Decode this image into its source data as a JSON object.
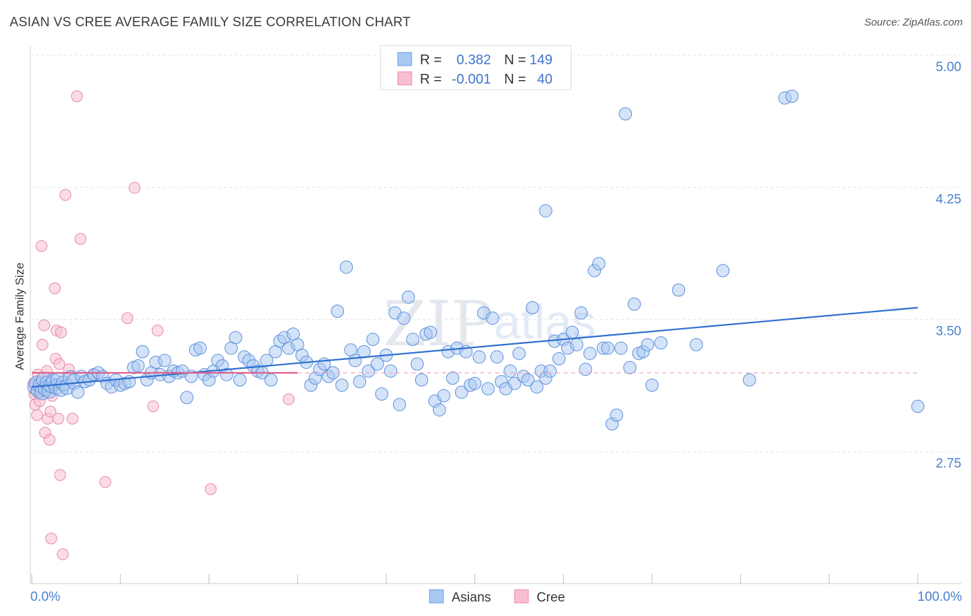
{
  "title": "ASIAN VS CREE AVERAGE FAMILY SIZE CORRELATION CHART",
  "source": "Source: ZipAtlas.com",
  "watermark": {
    "part1": "ZIP",
    "part2": "atlas"
  },
  "chart_data": {
    "type": "scatter",
    "title": "ASIAN VS CREE AVERAGE FAMILY SIZE CORRELATION CHART",
    "ylabel": "Average Family Size",
    "xlabel": "",
    "xlim": [
      0,
      100
    ],
    "ylim": [
      2.25,
      5.1
    ],
    "x_tick_labels": {
      "left": "0.0%",
      "right": "100.0%"
    },
    "y_ticks": [
      {
        "value": 2.75,
        "label": "2.75"
      },
      {
        "value": 3.5,
        "label": "3.50"
      },
      {
        "value": 4.25,
        "label": "4.25"
      },
      {
        "value": 5.0,
        "label": "5.00"
      }
    ],
    "legend_stats": [
      {
        "r_label": "R =",
        "r_value": "0.382",
        "n_label": "N =",
        "n_value": "149",
        "color": "#a9c8f2",
        "stroke": "#6a9be0"
      },
      {
        "r_label": "R =",
        "r_value": "-0.001",
        "n_label": "N =",
        "n_value": "40",
        "color": "#f7bfd0",
        "stroke": "#e48aa8"
      }
    ],
    "series": [
      {
        "name": "Asians",
        "color": "#a9c8f2",
        "stroke": "#5b8fdb",
        "trend": {
          "x": [
            0,
            100
          ],
          "y": [
            3.18,
            3.63
          ],
          "color": "#2f6fd0"
        },
        "points": [
          [
            0.4,
            3.18
          ],
          [
            0.6,
            3.2
          ],
          [
            0.8,
            3.16
          ],
          [
            1.0,
            3.19
          ],
          [
            1.2,
            3.15
          ],
          [
            1.4,
            3.22
          ],
          [
            1.6,
            3.17
          ],
          [
            1.8,
            3.2
          ],
          [
            2.0,
            3.16
          ],
          [
            2.2,
            3.19
          ],
          [
            2.5,
            3.21
          ],
          [
            2.8,
            3.18
          ],
          [
            3.0,
            3.22
          ],
          [
            3.3,
            3.17
          ],
          [
            3.6,
            3.2
          ],
          [
            4.0,
            3.18
          ],
          [
            4.4,
            3.23
          ],
          [
            4.8,
            3.21
          ],
          [
            5.2,
            3.15
          ],
          [
            5.6,
            3.24
          ],
          [
            6.0,
            3.21
          ],
          [
            6.5,
            3.22
          ],
          [
            7.0,
            3.25
          ],
          [
            7.5,
            3.26
          ],
          [
            8.0,
            3.24
          ],
          [
            8.5,
            3.2
          ],
          [
            9.0,
            3.18
          ],
          [
            9.5,
            3.22
          ],
          [
            10.0,
            3.19
          ],
          [
            10.5,
            3.2
          ],
          [
            11.0,
            3.21
          ],
          [
            11.5,
            3.29
          ],
          [
            12.0,
            3.3
          ],
          [
            12.5,
            3.38
          ],
          [
            13.0,
            3.22
          ],
          [
            13.5,
            3.26
          ],
          [
            14.0,
            3.32
          ],
          [
            14.5,
            3.25
          ],
          [
            15.0,
            3.33
          ],
          [
            15.5,
            3.24
          ],
          [
            16.0,
            3.27
          ],
          [
            16.5,
            3.26
          ],
          [
            17.0,
            3.27
          ],
          [
            17.5,
            3.12
          ],
          [
            18.0,
            3.24
          ],
          [
            18.5,
            3.39
          ],
          [
            19.0,
            3.4
          ],
          [
            19.5,
            3.25
          ],
          [
            20.0,
            3.22
          ],
          [
            20.5,
            3.27
          ],
          [
            21.0,
            3.33
          ],
          [
            21.5,
            3.3
          ],
          [
            22.0,
            3.25
          ],
          [
            22.5,
            3.4
          ],
          [
            23.0,
            3.46
          ],
          [
            23.5,
            3.22
          ],
          [
            24.0,
            3.35
          ],
          [
            24.5,
            3.33
          ],
          [
            25.0,
            3.3
          ],
          [
            25.5,
            3.27
          ],
          [
            26.0,
            3.26
          ],
          [
            26.5,
            3.33
          ],
          [
            27.0,
            3.22
          ],
          [
            27.5,
            3.38
          ],
          [
            28.0,
            3.44
          ],
          [
            28.5,
            3.46
          ],
          [
            29.0,
            3.4
          ],
          [
            29.5,
            3.48
          ],
          [
            30.0,
            3.42
          ],
          [
            30.5,
            3.36
          ],
          [
            31.0,
            3.32
          ],
          [
            31.5,
            3.19
          ],
          [
            32.0,
            3.23
          ],
          [
            32.5,
            3.28
          ],
          [
            33.0,
            3.31
          ],
          [
            33.5,
            3.24
          ],
          [
            34.0,
            3.26
          ],
          [
            34.5,
            3.61
          ],
          [
            35.0,
            3.19
          ],
          [
            35.5,
            3.86
          ],
          [
            36.0,
            3.39
          ],
          [
            36.5,
            3.33
          ],
          [
            37.0,
            3.21
          ],
          [
            37.5,
            3.38
          ],
          [
            38.0,
            3.27
          ],
          [
            38.5,
            3.45
          ],
          [
            39.0,
            3.31
          ],
          [
            39.5,
            3.14
          ],
          [
            40.0,
            3.36
          ],
          [
            40.5,
            3.27
          ],
          [
            41.0,
            3.6
          ],
          [
            41.5,
            3.08
          ],
          [
            42.0,
            3.57
          ],
          [
            42.5,
            3.69
          ],
          [
            43.0,
            3.45
          ],
          [
            43.5,
            3.31
          ],
          [
            44.0,
            3.22
          ],
          [
            44.5,
            3.48
          ],
          [
            45.0,
            3.49
          ],
          [
            45.5,
            3.1
          ],
          [
            46.0,
            3.05
          ],
          [
            46.5,
            3.13
          ],
          [
            47.0,
            3.38
          ],
          [
            47.5,
            3.23
          ],
          [
            48.0,
            3.4
          ],
          [
            48.5,
            3.15
          ],
          [
            49.0,
            3.38
          ],
          [
            49.5,
            3.19
          ],
          [
            50.0,
            3.2
          ],
          [
            50.5,
            3.35
          ],
          [
            51.0,
            3.6
          ],
          [
            51.5,
            3.17
          ],
          [
            52.0,
            3.57
          ],
          [
            52.5,
            3.35
          ],
          [
            53.0,
            3.21
          ],
          [
            53.5,
            3.17
          ],
          [
            54.0,
            3.27
          ],
          [
            54.5,
            3.2
          ],
          [
            55.0,
            3.37
          ],
          [
            55.5,
            3.24
          ],
          [
            56.0,
            3.22
          ],
          [
            56.5,
            3.63
          ],
          [
            57.0,
            3.18
          ],
          [
            57.5,
            3.27
          ],
          [
            58.0,
            3.23
          ],
          [
            58.5,
            3.27
          ],
          [
            59.0,
            3.44
          ],
          [
            59.5,
            3.34
          ],
          [
            60.0,
            3.45
          ],
          [
            60.5,
            3.4
          ],
          [
            61.0,
            3.49
          ],
          [
            61.5,
            3.42
          ],
          [
            62.0,
            3.6
          ],
          [
            62.5,
            3.28
          ],
          [
            63.0,
            3.37
          ],
          [
            63.5,
            3.84
          ],
          [
            64.0,
            3.88
          ],
          [
            64.5,
            3.4
          ],
          [
            65.0,
            3.4
          ],
          [
            65.5,
            2.97
          ],
          [
            66.0,
            3.02
          ],
          [
            66.5,
            3.4
          ],
          [
            67.0,
            4.73
          ],
          [
            67.5,
            3.29
          ],
          [
            68.0,
            3.65
          ],
          [
            68.5,
            3.37
          ],
          [
            69.0,
            3.38
          ],
          [
            69.5,
            3.42
          ],
          [
            70.0,
            3.19
          ],
          [
            71.0,
            3.43
          ],
          [
            73.0,
            3.73
          ],
          [
            75.0,
            3.42
          ],
          [
            78.0,
            3.84
          ],
          [
            81.0,
            3.22
          ],
          [
            85.0,
            4.82
          ],
          [
            85.8,
            4.83
          ],
          [
            100.0,
            3.07
          ],
          [
            58.0,
            4.18
          ]
        ]
      },
      {
        "name": "Cree",
        "color": "#f7bfd0",
        "stroke": "#e48aa8",
        "trend": {
          "x": [
            0,
            30
          ],
          "y": [
            3.26,
            3.26
          ],
          "dashed_to": 100,
          "color": "#e0608a"
        },
        "points": [
          [
            0.2,
            3.2
          ],
          [
            0.3,
            3.14
          ],
          [
            0.4,
            3.08
          ],
          [
            0.5,
            3.16
          ],
          [
            0.6,
            3.02
          ],
          [
            0.7,
            3.25
          ],
          [
            0.9,
            3.1
          ],
          [
            1.1,
            3.98
          ],
          [
            1.2,
            3.42
          ],
          [
            1.4,
            3.53
          ],
          [
            1.5,
            2.92
          ],
          [
            1.6,
            3.18
          ],
          [
            1.7,
            3.27
          ],
          [
            1.8,
            3.0
          ],
          [
            2.0,
            2.88
          ],
          [
            2.1,
            3.04
          ],
          [
            2.2,
            2.32
          ],
          [
            2.3,
            3.13
          ],
          [
            2.6,
            3.74
          ],
          [
            2.7,
            3.34
          ],
          [
            2.8,
            3.5
          ],
          [
            3.0,
            3.0
          ],
          [
            3.1,
            3.31
          ],
          [
            3.2,
            2.68
          ],
          [
            3.3,
            3.49
          ],
          [
            3.5,
            2.23
          ],
          [
            3.8,
            4.27
          ],
          [
            4.2,
            3.28
          ],
          [
            4.6,
            3.0
          ],
          [
            5.1,
            4.83
          ],
          [
            5.5,
            4.02
          ],
          [
            7.0,
            3.25
          ],
          [
            8.3,
            2.64
          ],
          [
            10.8,
            3.57
          ],
          [
            11.6,
            4.31
          ],
          [
            13.7,
            3.07
          ],
          [
            14.2,
            3.5
          ],
          [
            20.2,
            2.6
          ],
          [
            29.0,
            3.11
          ],
          [
            1.0,
            3.15
          ]
        ]
      }
    ]
  },
  "bottom_legend": [
    {
      "label": "Asians",
      "color": "#a9c8f2",
      "stroke": "#6a9be0"
    },
    {
      "label": "Cree",
      "color": "#f7bfd0",
      "stroke": "#e48aa8"
    }
  ]
}
